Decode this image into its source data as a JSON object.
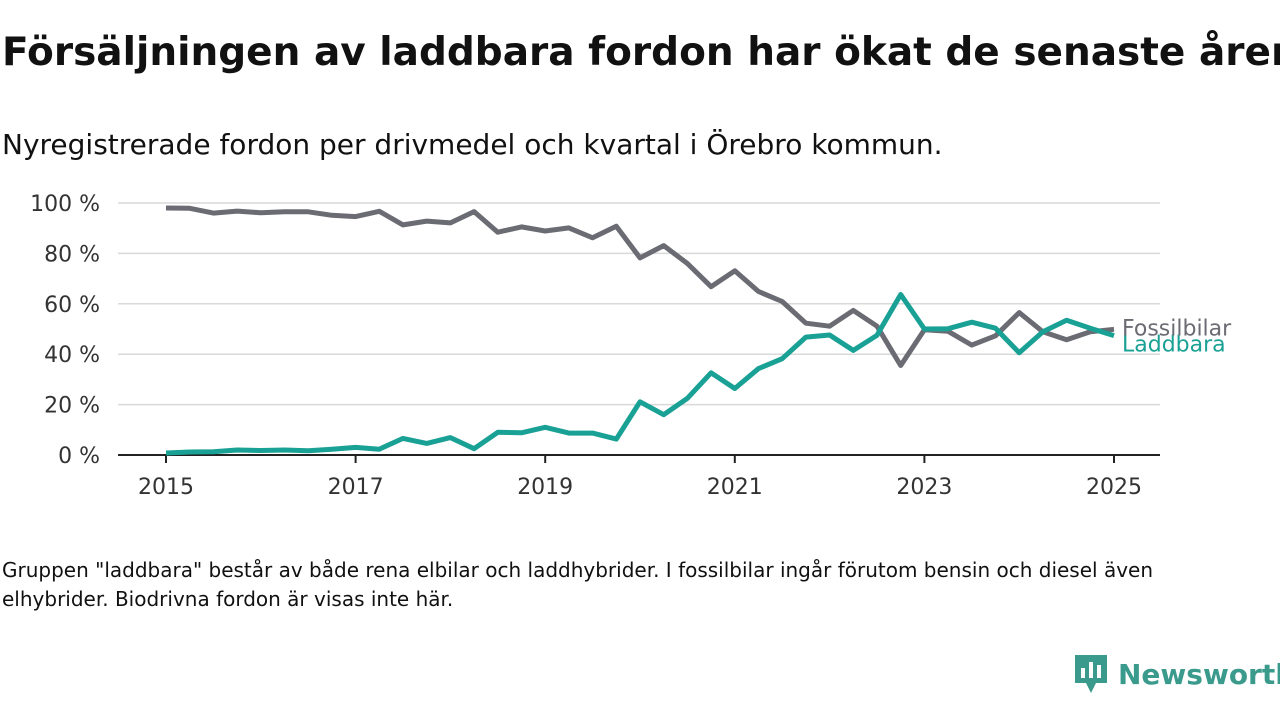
{
  "title": "Försäljningen av laddbara fordon har ökat de senaste åren",
  "subtitle": "Nyregistrerade fordon per drivmedel och kvartal i Örebro kommun.",
  "footnote": "Gruppen \"laddbara\" består av både rena elbilar och laddhybrider. I fossilbilar ingår förutom bensin och diesel även elhybrider. Biodrivna fordon är visas inte här.",
  "logo": {
    "text": "Newsworthy",
    "icon": "newsworthy-logo-icon",
    "color": "#3a9a8c"
  },
  "chart_data": {
    "type": "line",
    "title": "",
    "xlabel": "",
    "ylabel": "",
    "x_ticks": [
      "2015",
      "2017",
      "2019",
      "2021",
      "2023",
      "2025"
    ],
    "y_ticks": [
      "0 %",
      "20 %",
      "40 %",
      "60 %",
      "80 %",
      "100 %"
    ],
    "xlim": [
      2015,
      2025
    ],
    "ylim": [
      0,
      100
    ],
    "grid": "horizontal",
    "legend": "direct labels at line ends",
    "x": [
      "2015 Q1",
      "2015 Q2",
      "2015 Q3",
      "2015 Q4",
      "2016 Q1",
      "2016 Q2",
      "2016 Q3",
      "2016 Q4",
      "2017 Q1",
      "2017 Q2",
      "2017 Q3",
      "2017 Q4",
      "2018 Q1",
      "2018 Q2",
      "2018 Q3",
      "2018 Q4",
      "2019 Q1",
      "2019 Q2",
      "2019 Q3",
      "2019 Q4",
      "2020 Q1",
      "2020 Q2",
      "2020 Q3",
      "2020 Q4",
      "2021 Q1",
      "2021 Q2",
      "2021 Q3",
      "2021 Q4",
      "2022 Q1",
      "2022 Q2",
      "2022 Q3",
      "2022 Q4",
      "2023 Q1",
      "2023 Q2",
      "2023 Q3",
      "2023 Q4",
      "2024 Q1",
      "2024 Q2",
      "2024 Q3",
      "2024 Q4",
      "2025 Q1"
    ],
    "x_numeric": [
      2015,
      2015.25,
      2015.5,
      2015.75,
      2016,
      2016.25,
      2016.5,
      2016.75,
      2017,
      2017.25,
      2017.5,
      2017.75,
      2018,
      2018.25,
      2018.5,
      2018.75,
      2019,
      2019.25,
      2019.5,
      2019.75,
      2020,
      2020.25,
      2020.5,
      2020.75,
      2021,
      2021.25,
      2021.5,
      2021.75,
      2022,
      2022.25,
      2022.5,
      2022.75,
      2023,
      2023.25,
      2023.5,
      2023.75,
      2024,
      2024.25,
      2024.5,
      2024.75,
      2025
    ],
    "series": [
      {
        "name": "Fossilbilar",
        "color": "#6b6b73",
        "values": [
          98,
          97.9,
          96,
          96.8,
          96.1,
          96.5,
          96.5,
          95.1,
          94.6,
          96.7,
          91.3,
          92.8,
          92.1,
          96.6,
          88.4,
          90.5,
          88.9,
          90.1,
          86.2,
          90.8,
          78.2,
          83.1,
          76,
          66.8,
          73.1,
          64.9,
          60.9,
          52.3,
          51.1,
          57.4,
          51.1,
          35.5,
          49.7,
          49.1,
          43.6,
          47.3,
          56.5,
          48.9,
          45.7,
          48.9,
          49.9
        ]
      },
      {
        "name": "Laddbara",
        "color": "#1aa195",
        "values": [
          0.8,
          1.2,
          1.3,
          2,
          1.8,
          2,
          1.7,
          2.3,
          3,
          2.3,
          6.6,
          4.6,
          6.9,
          2.5,
          9,
          8.8,
          11,
          8.7,
          8.7,
          6.3,
          21.1,
          16,
          22.5,
          32.6,
          26.4,
          34.3,
          38.2,
          46.8,
          47.6,
          41.5,
          47.5,
          63.7,
          50,
          50.1,
          52.7,
          50.3,
          40.6,
          48.9,
          53.5,
          50.3,
          47.4
        ]
      }
    ]
  }
}
